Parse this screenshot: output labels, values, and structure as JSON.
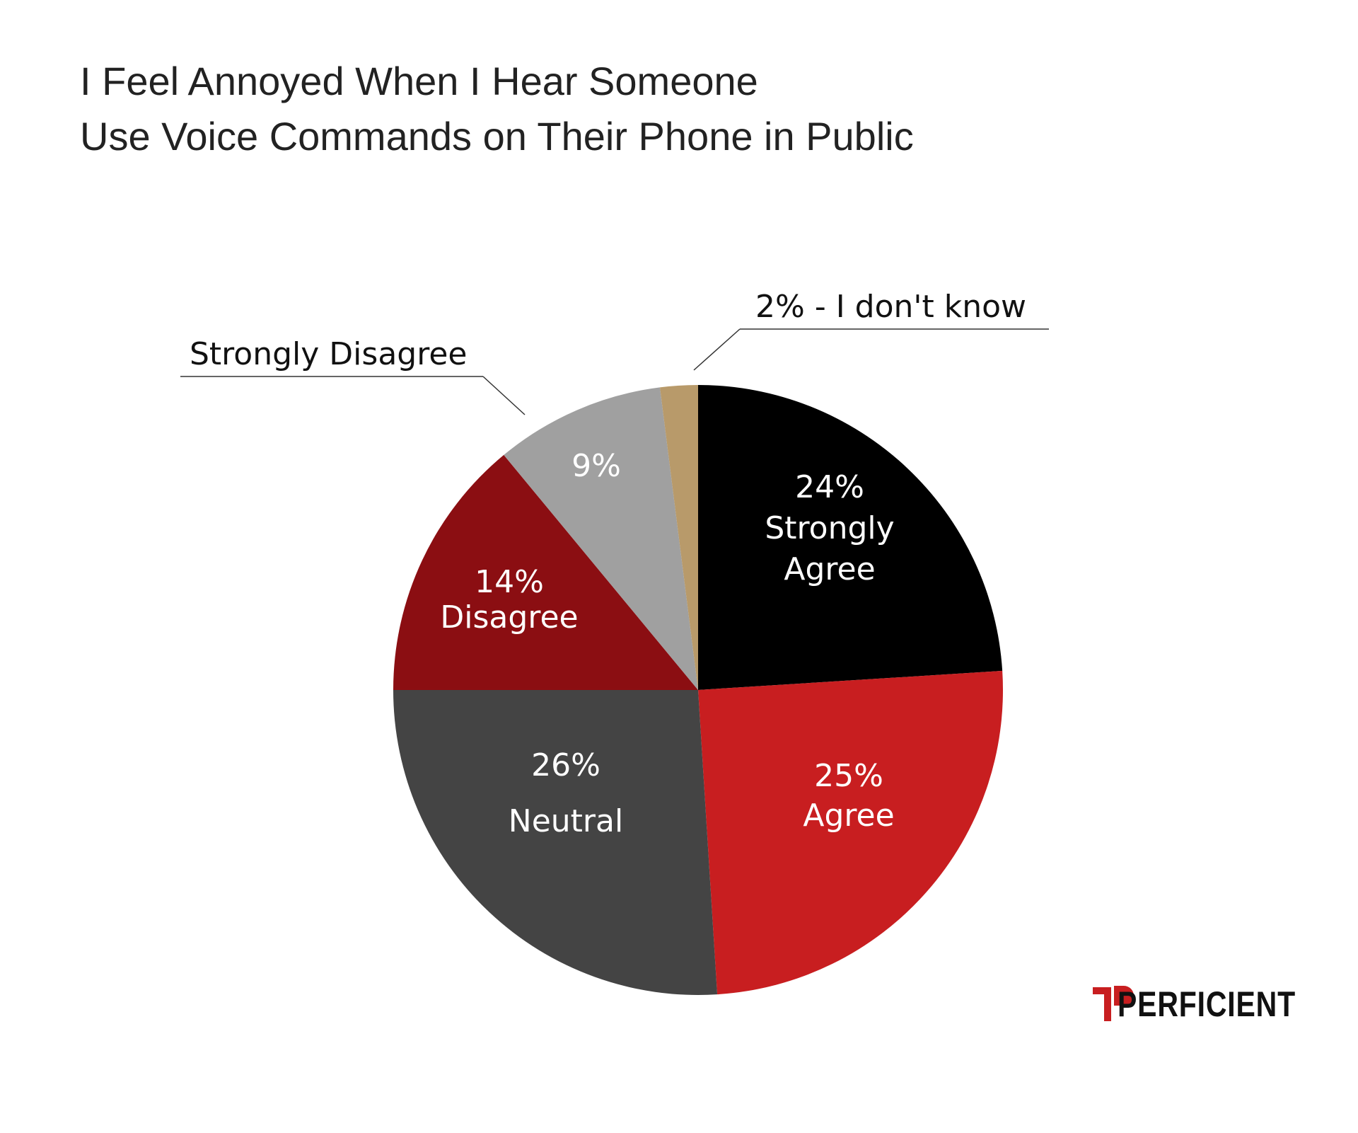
{
  "chart_data": {
    "type": "pie",
    "title": [
      "I Feel Annoyed When I Hear Someone",
      "Use Voice Commands on Their Phone in Public"
    ],
    "categories": [
      "Strongly Agree",
      "Agree",
      "Neutral",
      "Disagree",
      "Strongly Disagree",
      "I don't know"
    ],
    "values": [
      24,
      25,
      26,
      14,
      9,
      2
    ],
    "value_labels": [
      "24%",
      "25%",
      "26%",
      "14%",
      "9%",
      "2%"
    ],
    "colors": [
      "#000000",
      "#c81e20",
      "#444444",
      "#8b0e12",
      "#a0a0a0",
      "#b89a6a"
    ],
    "label_separator": "-",
    "logo": "PERFICIENT"
  }
}
